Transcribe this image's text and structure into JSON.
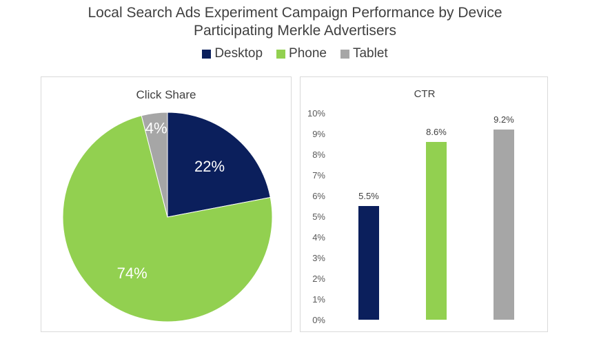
{
  "title": {
    "line1": "Local Search Ads Experiment Campaign Performance by Device",
    "line2": "Participating Merkle Advertisers"
  },
  "legend": [
    {
      "label": "Desktop",
      "color": "#0b1f5c"
    },
    {
      "label": "Phone",
      "color": "#92d050"
    },
    {
      "label": "Tablet",
      "color": "#a6a6a6"
    }
  ],
  "chart_data": [
    {
      "type": "pie",
      "title": "Click Share",
      "slices": [
        {
          "label": "Desktop",
          "value": 22,
          "display": "22%",
          "color": "#0b1f5c"
        },
        {
          "label": "Phone",
          "value": 74,
          "display": "74%",
          "color": "#92d050"
        },
        {
          "label": "Tablet",
          "value": 4,
          "display": "4%",
          "color": "#a6a6a6"
        }
      ]
    },
    {
      "type": "bar",
      "title": "CTR",
      "categories": [
        "Desktop",
        "Phone",
        "Tablet"
      ],
      "values": [
        5.5,
        8.6,
        9.2
      ],
      "data_labels": [
        "5.5%",
        "8.6%",
        "9.2%"
      ],
      "colors": [
        "#0b1f5c",
        "#92d050",
        "#a6a6a6"
      ],
      "ylim": [
        0,
        10
      ],
      "yticks": [
        "0%",
        "1%",
        "2%",
        "3%",
        "4%",
        "5%",
        "6%",
        "7%",
        "8%",
        "9%",
        "10%"
      ],
      "grid": false
    }
  ]
}
